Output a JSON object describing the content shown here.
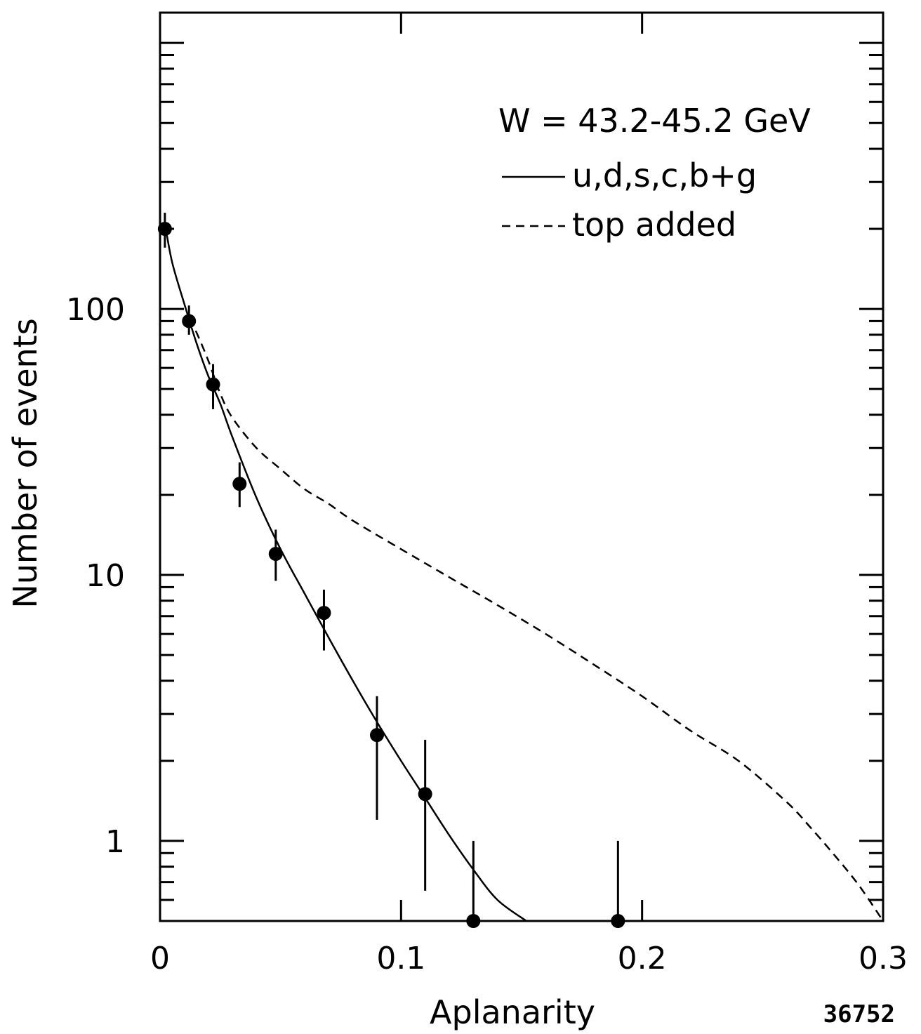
{
  "chart_data": {
    "type": "scatter",
    "title": "W = 43.2-45.2 GeV",
    "xlabel": "Aplanarity",
    "ylabel": "Number of events",
    "x_scale": "linear",
    "y_scale": "log",
    "xlim": [
      0,
      0.3
    ],
    "ylim": [
      0.5,
      1300
    ],
    "x_ticks": [
      {
        "value": 0,
        "label": "0"
      },
      {
        "value": 0.1,
        "label": "0.1"
      },
      {
        "value": 0.2,
        "label": "0.2"
      },
      {
        "value": 0.3,
        "label": "0.3"
      }
    ],
    "y_ticks": [
      {
        "value": 1,
        "label": "1"
      },
      {
        "value": 10,
        "label": "10"
      },
      {
        "value": 100,
        "label": "100"
      }
    ],
    "grid": false,
    "legend_position": "top-right",
    "series": [
      {
        "name": "u,d,s,c,b+g",
        "kind": "line",
        "style": "solid",
        "x": [
          0.002,
          0.005,
          0.01,
          0.015,
          0.02,
          0.025,
          0.03,
          0.04,
          0.05,
          0.06,
          0.07,
          0.08,
          0.09,
          0.1,
          0.11,
          0.12,
          0.13,
          0.14,
          0.152
        ],
        "y": [
          210,
          150,
          105,
          75,
          56,
          44,
          33,
          19.5,
          12.5,
          8.5,
          5.8,
          4.0,
          2.8,
          2.0,
          1.45,
          1.05,
          0.78,
          0.6,
          0.5
        ]
      },
      {
        "name": "top added",
        "kind": "line",
        "style": "dashed",
        "x": [
          0.012,
          0.015,
          0.02,
          0.025,
          0.03,
          0.04,
          0.05,
          0.06,
          0.07,
          0.08,
          0.1,
          0.12,
          0.14,
          0.16,
          0.18,
          0.2,
          0.22,
          0.24,
          0.26,
          0.27,
          0.28,
          0.29,
          0.3
        ],
        "y": [
          92,
          82,
          64,
          48,
          39,
          30,
          25,
          21,
          18.5,
          16,
          12.5,
          9.8,
          7.7,
          6.0,
          4.6,
          3.5,
          2.6,
          2.0,
          1.4,
          1.12,
          0.88,
          0.68,
          0.5
        ]
      },
      {
        "name": "data",
        "kind": "points",
        "x": [
          0.002,
          0.012,
          0.022,
          0.033,
          0.048,
          0.068,
          0.09,
          0.11,
          0.13,
          0.19
        ],
        "y": [
          200,
          90,
          52,
          22,
          12,
          7.2,
          2.5,
          1.5,
          0.5,
          0.5
        ],
        "y_err_low": [
          170,
          80,
          42,
          18,
          9.5,
          5.2,
          1.2,
          0.65,
          0.5,
          0.5
        ],
        "y_err_high": [
          230,
          103,
          62,
          26.5,
          14.8,
          8.8,
          3.5,
          2.4,
          1.0,
          1.0
        ]
      }
    ],
    "legend": {
      "header": "W = 43.2-45.2 GeV",
      "entries": [
        {
          "label": "u,d,s,c,b+g",
          "style": "solid"
        },
        {
          "label": "top added",
          "style": "dashed"
        }
      ]
    },
    "annotations": {
      "figure_number": "36752"
    }
  }
}
